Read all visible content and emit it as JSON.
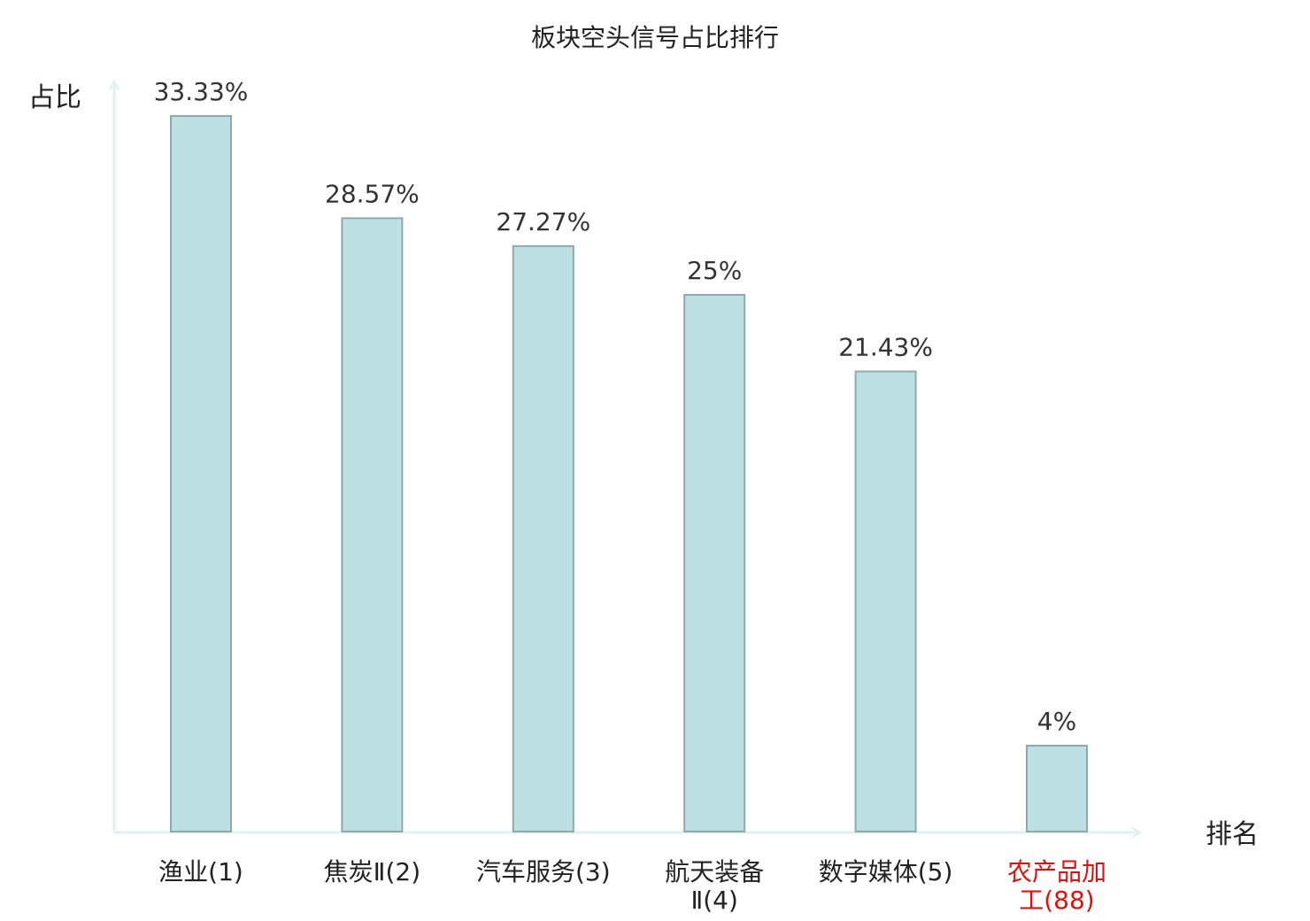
{
  "chart_data": {
    "type": "bar",
    "title": "板块空头信号占比排行",
    "ylabel": "占比",
    "xlabel": "排名",
    "categories": [
      [
        "渔业(1)"
      ],
      [
        "焦炭Ⅱ(2)"
      ],
      [
        "汽车服务(3)"
      ],
      [
        "航天装备",
        "Ⅱ(4)"
      ],
      [
        "数字媒体(5)"
      ],
      [
        "农产品加",
        "工(88)"
      ]
    ],
    "values": [
      33.33,
      28.57,
      27.27,
      25,
      21.43,
      4
    ],
    "value_labels": [
      "33.33%",
      "28.57%",
      "27.27%",
      "25%",
      "21.43%",
      "4%"
    ],
    "highlight_index": 5,
    "ylim": [
      0,
      35
    ],
    "grid": false,
    "colors": {
      "bar_fill": "#bde0e3",
      "bar_stroke": "#8fa9ab",
      "axis": "#e0f2ef",
      "highlight_label": "#e01010"
    }
  }
}
